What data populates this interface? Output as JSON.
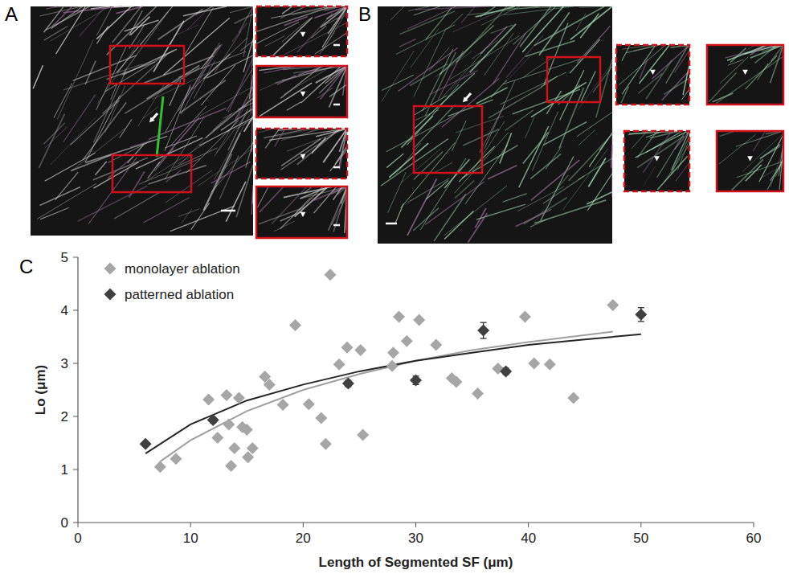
{
  "panels": [
    {
      "label": "A"
    },
    {
      "label": "B"
    },
    {
      "label": "C"
    }
  ],
  "chart_data": {
    "type": "scatter",
    "x_label": "Length of Segmented SF (μm)",
    "y_label": "Lo (μm)",
    "xlim": [
      0,
      60
    ],
    "xticks": [
      0,
      10,
      20,
      30,
      40,
      50,
      60
    ],
    "ylim": [
      0,
      5
    ],
    "yticks": [
      0,
      1,
      2,
      3,
      4,
      5
    ],
    "grid": false,
    "legend": "upper left",
    "series": [
      {
        "name": "monolayer ablation",
        "type": "scatter",
        "color": "#a6a6a6",
        "marker": "diamond",
        "x": [
          7.3,
          8.7,
          11.6,
          12.4,
          13.2,
          13.4,
          13.6,
          13.9,
          14.3,
          14.6,
          15.0,
          15.1,
          15.5,
          16.6,
          17.0,
          18.2,
          19.3,
          20.5,
          21.6,
          22.0,
          22.4,
          23.2,
          23.9,
          25.1,
          25.3,
          27.9,
          28.0,
          28.5,
          29.2,
          30.3,
          31.8,
          33.2,
          33.6,
          35.5,
          37.3,
          39.7,
          40.5,
          41.9,
          44.0,
          47.5
        ],
        "values": [
          1.05,
          1.2,
          2.32,
          1.6,
          2.4,
          1.85,
          1.07,
          1.4,
          2.35,
          1.8,
          1.75,
          1.23,
          1.4,
          2.75,
          2.6,
          2.22,
          3.72,
          2.23,
          1.97,
          1.48,
          4.67,
          2.98,
          3.3,
          3.25,
          1.65,
          2.95,
          3.2,
          3.88,
          3.42,
          3.82,
          3.35,
          2.72,
          2.65,
          2.43,
          2.9,
          3.88,
          3.0,
          2.98,
          2.35,
          4.1
        ]
      },
      {
        "name": "patterned ablation",
        "type": "scatter",
        "color": "#404040",
        "marker": "diamond",
        "x": [
          6,
          12,
          24,
          30,
          36,
          38,
          50
        ],
        "values": [
          1.48,
          1.93,
          2.62,
          2.68,
          3.62,
          2.85,
          3.92
        ],
        "error": [
          0.04,
          0.05,
          0.06,
          0.08,
          0.15,
          0.06,
          0.13
        ]
      },
      {
        "type": "line",
        "color": "#a0a0a0",
        "line_style": "solid",
        "x": [
          7.3,
          10,
          15,
          20,
          25,
          30,
          35,
          40,
          47.5
        ],
        "values": [
          1.15,
          1.55,
          2.1,
          2.5,
          2.8,
          3.05,
          3.25,
          3.4,
          3.6
        ]
      },
      {
        "type": "line",
        "color": "#262626",
        "line_style": "solid",
        "x": [
          6,
          10,
          15,
          20,
          25,
          30,
          35,
          40,
          45,
          50
        ],
        "values": [
          1.3,
          1.85,
          2.3,
          2.6,
          2.85,
          3.05,
          3.2,
          3.35,
          3.45,
          3.55
        ]
      }
    ]
  }
}
